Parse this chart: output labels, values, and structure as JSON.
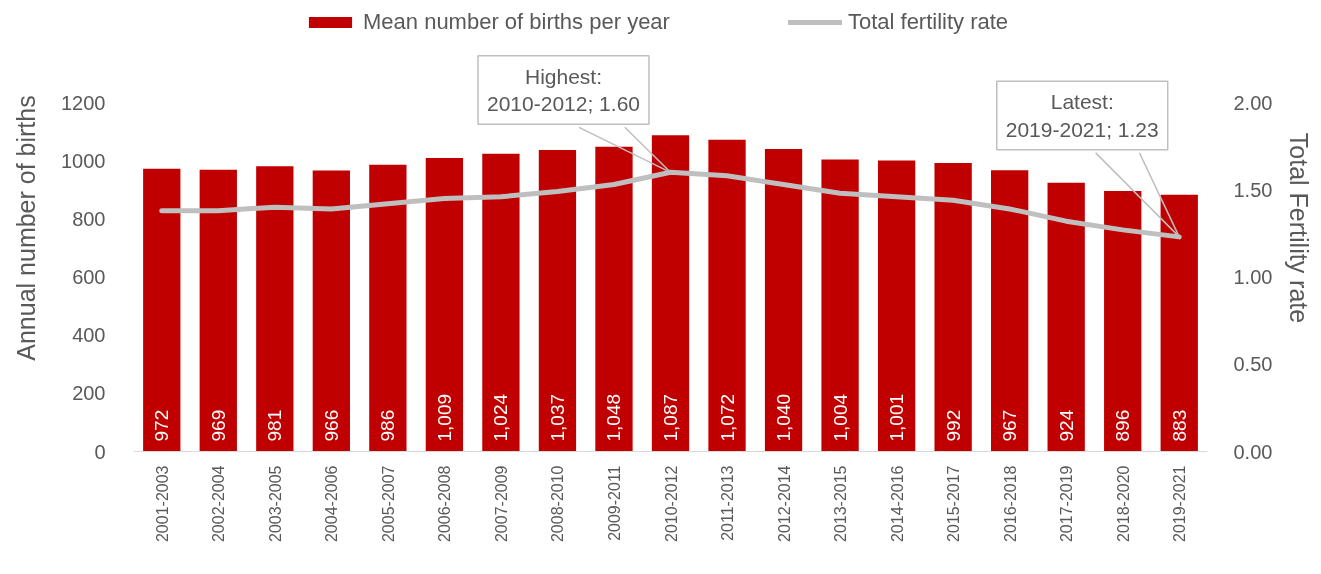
{
  "chart_data": {
    "type": "bar",
    "categories": [
      "2001-2003",
      "2002-2004",
      "2003-2005",
      "2004-2006",
      "2005-2007",
      "2006-2008",
      "2007-2009",
      "2008-2010",
      "2009-2011",
      "2010-2012",
      "2011-2013",
      "2012-2014",
      "2013-2015",
      "2014-2016",
      "2015-2017",
      "2016-2018",
      "2017-2019",
      "2018-2020",
      "2019-2021"
    ],
    "ylabel": "Annual number of births",
    "y2label": "Total Fertility rate",
    "ylim": [
      0,
      1200
    ],
    "yticks": [
      0,
      200,
      400,
      600,
      800,
      1000,
      1200
    ],
    "y2lim": [
      0,
      2
    ],
    "y2ticks": [
      {
        "value": 0,
        "label": "0.00"
      },
      {
        "value": 0.5,
        "label": "0.50"
      },
      {
        "value": 1,
        "label": "1.00"
      },
      {
        "value": 1.5,
        "label": "1.50"
      },
      {
        "value": 2,
        "label": "2.00"
      }
    ],
    "series": [
      {
        "name": "Mean number of births per year",
        "color": "#c00000",
        "values": [
          972,
          969,
          981,
          966,
          986,
          1009,
          1024,
          1037,
          1048,
          1087,
          1072,
          1040,
          1004,
          1001,
          992,
          967,
          924,
          896,
          883
        ],
        "value_labels": [
          "972",
          "969",
          "981",
          "966",
          "986",
          "1,009",
          "1,024",
          "1,037",
          "1,048",
          "1,087",
          "1,072",
          "1,040",
          "1,004",
          "1,001",
          "992",
          "967",
          "924",
          "896",
          "883"
        ]
      },
      {
        "name": "Total fertility rate",
        "type": "line",
        "axis": "y2",
        "color": "#bfbfbf",
        "values": [
          1.38,
          1.38,
          1.4,
          1.39,
          1.42,
          1.45,
          1.46,
          1.49,
          1.53,
          1.6,
          1.58,
          1.53,
          1.48,
          1.46,
          1.44,
          1.39,
          1.32,
          1.27,
          1.23
        ]
      }
    ],
    "annotations": [
      {
        "text": "Highest:\n2010-2012; 1.60",
        "x": "2010-2012",
        "y": 960
      },
      {
        "text": "Latest:\n2019-2021; 1.23",
        "x": "2019-2021",
        "y": 738
      }
    ],
    "legend": "top",
    "grid": false
  }
}
